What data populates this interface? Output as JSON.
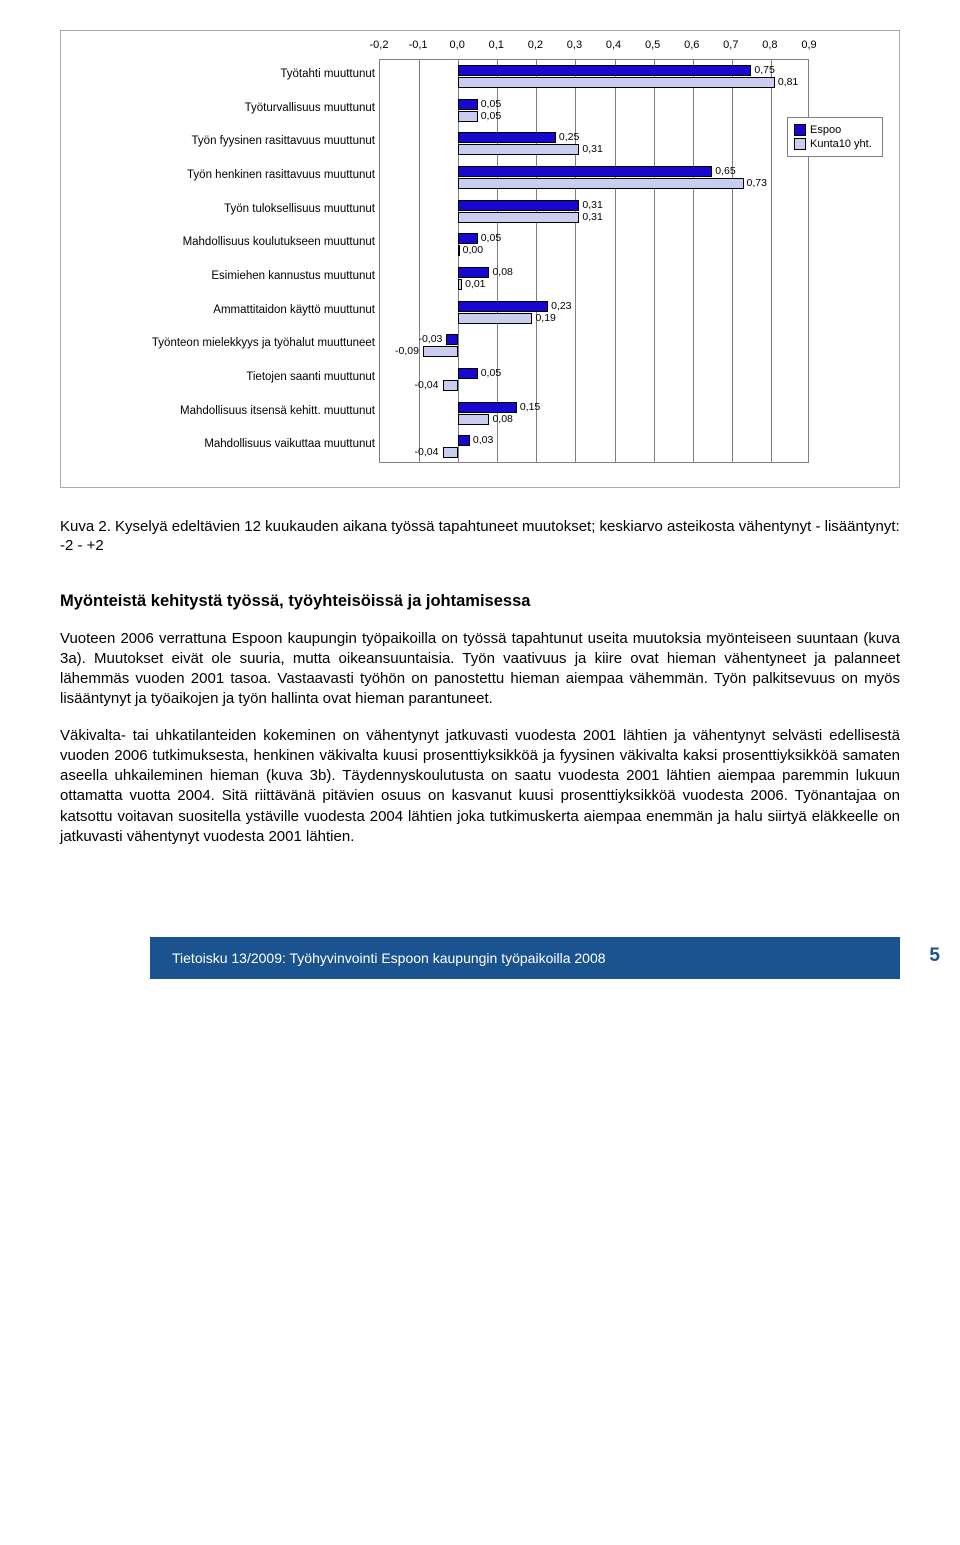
{
  "chart": {
    "type": "bar-horizontal-grouped",
    "xmin": -0.2,
    "xmax": 0.9,
    "xtick_step": 0.1,
    "xtick_labels": [
      "-0,2",
      "-0,1",
      "0,0",
      "0,1",
      "0,2",
      "0,3",
      "0,4",
      "0,5",
      "0,6",
      "0,7",
      "0,8",
      "0,9"
    ],
    "series": [
      {
        "name": "Espoo",
        "color": "#1608ce"
      },
      {
        "name": "Kunta10 yht.",
        "color": "#c9cef1"
      }
    ],
    "categories": [
      {
        "label": "Työtahti muuttunut",
        "v": [
          0.75,
          0.81
        ],
        "vl": [
          "0,75",
          "0,81"
        ]
      },
      {
        "label": "Työturvallisuus muuttunut",
        "v": [
          0.05,
          0.05
        ],
        "vl": [
          "0,05",
          "0,05"
        ]
      },
      {
        "label": "Työn fyysinen rasittavuus muuttunut",
        "v": [
          0.25,
          0.31
        ],
        "vl": [
          "0,25",
          "0,31"
        ]
      },
      {
        "label": "Työn henkinen rasittavuus muuttunut",
        "v": [
          0.65,
          0.73
        ],
        "vl": [
          "0,65",
          "0,73"
        ]
      },
      {
        "label": "Työn tuloksellisuus muuttunut",
        "v": [
          0.31,
          0.31
        ],
        "vl": [
          "0,31",
          "0,31"
        ]
      },
      {
        "label": "Mahdollisuus koulutukseen muuttunut",
        "v": [
          0.05,
          0.0
        ],
        "vl": [
          "0,05",
          "0,00"
        ]
      },
      {
        "label": "Esimiehen kannustus muuttunut",
        "v": [
          0.08,
          0.01
        ],
        "vl": [
          "0,08",
          "0,01"
        ]
      },
      {
        "label": "Ammattitaidon käyttö muuttunut",
        "v": [
          0.23,
          0.19
        ],
        "vl": [
          "0,23",
          "0,19"
        ]
      },
      {
        "label": "Työnteon mielekkyys ja työhalut muuttuneet",
        "v": [
          -0.03,
          -0.09
        ],
        "vl": [
          "-0,03",
          "-0,09"
        ]
      },
      {
        "label": "Tietojen saanti muuttunut",
        "v": [
          0.05,
          -0.04
        ],
        "vl": [
          "0,05",
          "-0,04"
        ]
      },
      {
        "label": "Mahdollisuus itsensä kehitt. muuttunut",
        "v": [
          0.15,
          0.08
        ],
        "vl": [
          "0,15",
          "0,08"
        ]
      },
      {
        "label": "Mahdollisuus vaikuttaa muuttunut",
        "v": [
          0.03,
          -0.04
        ],
        "vl": [
          "0,03",
          "-0,04"
        ]
      }
    ],
    "border_color": "#808080",
    "bar_border": "#000000",
    "axis_font_size": 11,
    "label_color": "#000000"
  },
  "caption_prefix": "Kuva 2.",
  "caption_text": "Kyselyä edeltävien 12 kuukauden aikana työssä tapahtuneet muutokset; keskiarvo asteikosta vähentynyt - lisääntynyt: -2 - +2",
  "section_heading": "Myönteistä kehitystä työssä, työyhteisöissä ja johtamisessa",
  "para1": "Vuoteen 2006 verrattuna Espoon kaupungin työpaikoilla on työssä tapahtunut useita muutoksia myönteiseen suuntaan (kuva 3a). Muutokset eivät ole suuria, mutta oikeansuuntaisia. Työn vaativuus ja kiire ovat hieman vähentyneet ja palanneet lähemmäs vuoden 2001 tasoa. Vastaavasti työhön on panostettu hieman aiempaa vähemmän. Työn palkitsevuus on myös lisääntynyt ja työaikojen ja työn hallinta ovat hieman parantuneet.",
  "para2": "Väkivalta- tai uhkatilanteiden kokeminen on vähentynyt jatkuvasti vuodesta 2001 lähtien ja vähentynyt selvästi edellisestä vuoden 2006 tutkimuksesta, henkinen väkivalta kuusi prosenttiyksikköä ja fyysinen väkivalta kaksi prosenttiyksikköä samaten aseella uhkaileminen hieman (kuva 3b). Täydennyskoulutusta on saatu vuodesta 2001 lähtien aiempaa paremmin lukuun ottamatta vuotta 2004.  Sitä riittävänä pitävien osuus on kasvanut kuusi prosenttiyksikköä vuodesta 2006. Työnantajaa on katsottu voitavan suositella ystäville vuodesta 2004 lähtien joka tutkimuskerta aiempaa enemmän ja halu siirtyä eläkkeelle on jatkuvasti vähentynyt vuodesta 2001 lähtien.",
  "footer_text": "Tietoisku 13/2009: Työhyvinvointi Espoon kaupungin työpaikoilla 2008",
  "page_number": "5",
  "footer_bg": "#1a5390",
  "footer_pagecolor": "#1a5390"
}
